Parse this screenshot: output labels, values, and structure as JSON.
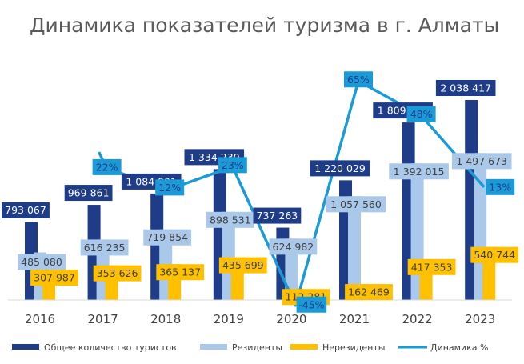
{
  "chart_data": {
    "type": "bar",
    "title": "Динамика показателей туризма в г. Алматы",
    "categories": [
      "2016",
      "2017",
      "2018",
      "2019",
      "2020",
      "2021",
      "2022",
      "2023"
    ],
    "series": [
      {
        "name": "Общее количество туристов",
        "color": "#1F3C88",
        "values": [
          793067,
          969861,
          1084991,
          1334230,
          737263,
          1220029,
          1809368,
          2038417
        ],
        "labels": [
          "793 067",
          "969 861",
          "1 084 991",
          "1 334 230",
          "737 263",
          "1 220 029",
          "1 809 368",
          "2 038 417"
        ]
      },
      {
        "name": "Резиденты",
        "color": "#A9C8EA",
        "values": [
          485080,
          616235,
          719854,
          898531,
          624982,
          1057560,
          1392015,
          1497673
        ],
        "labels": [
          "485 080",
          "616 235",
          "719 854",
          "898 531",
          "624 982",
          "1 057 560",
          "1 392 015",
          "1 497 673"
        ]
      },
      {
        "name": "Нерезиденты",
        "color": "#FFC000",
        "values": [
          307987,
          353626,
          365137,
          435699,
          112281,
          162469,
          417353,
          540744
        ],
        "labels": [
          "307 987",
          "353 626",
          "365 137",
          "435 699",
          "112 281",
          "162 469",
          "417 353",
          "540 744"
        ]
      },
      {
        "name": "Динамика %",
        "type": "line",
        "axis": "secondary",
        "color": "#1A9BD7",
        "values": [
          null,
          22,
          12,
          23,
          -45,
          65,
          48,
          13
        ],
        "labels": [
          "",
          "22%",
          "12%",
          "23%",
          "-45%",
          "65%",
          "48%",
          "13%"
        ]
      }
    ],
    "legend": "bottom",
    "grid": false
  }
}
